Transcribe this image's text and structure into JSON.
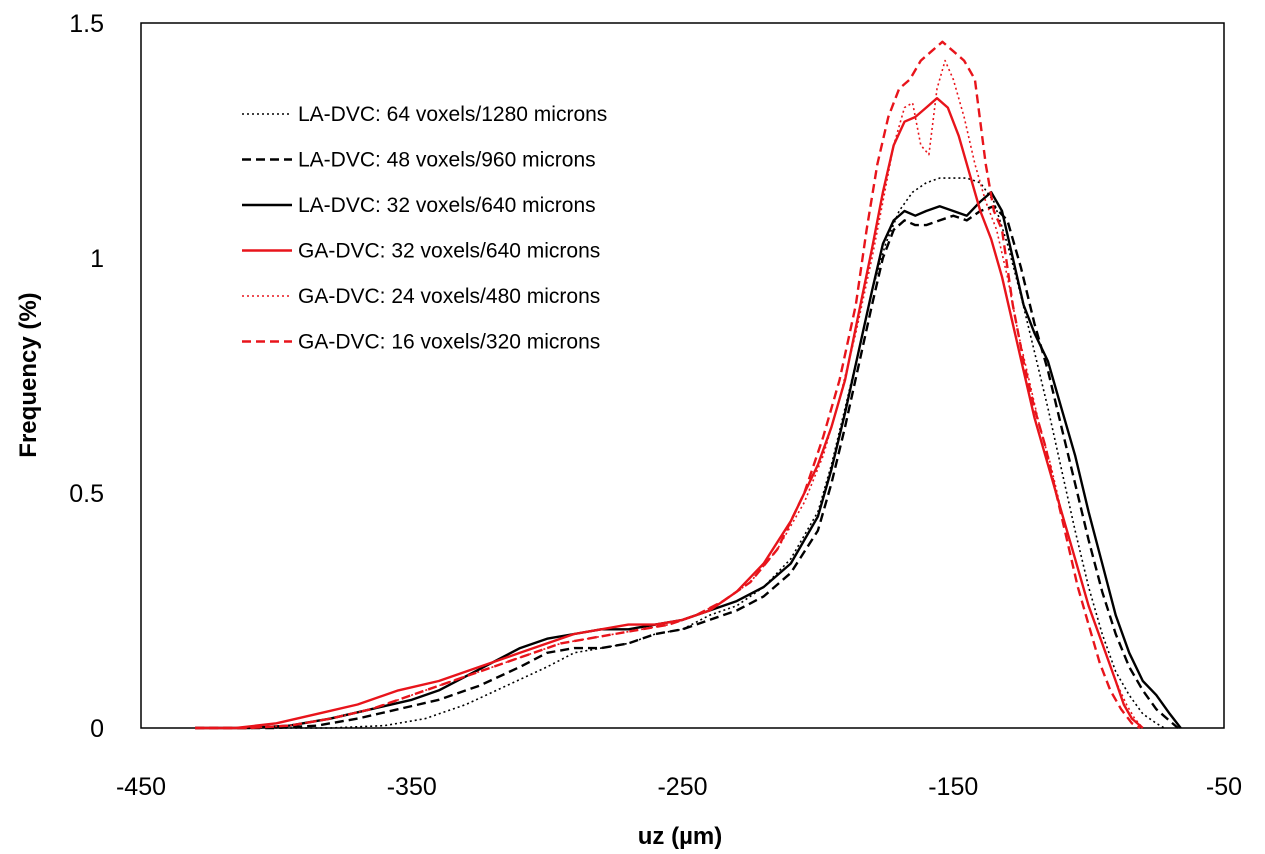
{
  "chart_data": {
    "type": "line",
    "xlabel": "uz (µm)",
    "ylabel": "Frequency (%)",
    "xlim": [
      -450,
      -50
    ],
    "ylim": [
      0,
      1.5
    ],
    "xticks": [
      "-450",
      "-350",
      "-250",
      "-150",
      "-50"
    ],
    "yticks": [
      "0",
      "0.5",
      "1",
      "1.5"
    ],
    "grid": false,
    "legend_position": "top-left",
    "series": [
      {
        "name": "LA-DVC: 64 voxels/1280 microns",
        "color": "#000000",
        "style": "dotted",
        "points": [
          [
            -430,
            0
          ],
          [
            -400,
            0
          ],
          [
            -380,
            0
          ],
          [
            -360,
            0.005
          ],
          [
            -345,
            0.02
          ],
          [
            -330,
            0.05
          ],
          [
            -315,
            0.09
          ],
          [
            -300,
            0.13
          ],
          [
            -290,
            0.16
          ],
          [
            -280,
            0.17
          ],
          [
            -270,
            0.18
          ],
          [
            -260,
            0.2
          ],
          [
            -250,
            0.21
          ],
          [
            -240,
            0.24
          ],
          [
            -230,
            0.26
          ],
          [
            -220,
            0.3
          ],
          [
            -210,
            0.36
          ],
          [
            -200,
            0.46
          ],
          [
            -195,
            0.56
          ],
          [
            -190,
            0.68
          ],
          [
            -185,
            0.8
          ],
          [
            -180,
            0.93
          ],
          [
            -175,
            1.03
          ],
          [
            -170,
            1.1
          ],
          [
            -165,
            1.14
          ],
          [
            -160,
            1.16
          ],
          [
            -155,
            1.17
          ],
          [
            -150,
            1.17
          ],
          [
            -145,
            1.17
          ],
          [
            -140,
            1.16
          ],
          [
            -135,
            1.12
          ],
          [
            -130,
            1.03
          ],
          [
            -125,
            0.92
          ],
          [
            -120,
            0.8
          ],
          [
            -115,
            0.68
          ],
          [
            -110,
            0.55
          ],
          [
            -105,
            0.42
          ],
          [
            -100,
            0.3
          ],
          [
            -95,
            0.2
          ],
          [
            -90,
            0.12
          ],
          [
            -85,
            0.07
          ],
          [
            -80,
            0.03
          ],
          [
            -75,
            0.01
          ],
          [
            -72,
            0
          ]
        ]
      },
      {
        "name": "LA-DVC: 48 voxels/960 microns",
        "color": "#000000",
        "style": "dashed",
        "points": [
          [
            -430,
            0
          ],
          [
            -400,
            0
          ],
          [
            -385,
            0.005
          ],
          [
            -370,
            0.02
          ],
          [
            -355,
            0.04
          ],
          [
            -340,
            0.06
          ],
          [
            -325,
            0.09
          ],
          [
            -310,
            0.13
          ],
          [
            -300,
            0.16
          ],
          [
            -290,
            0.17
          ],
          [
            -280,
            0.17
          ],
          [
            -270,
            0.18
          ],
          [
            -260,
            0.2
          ],
          [
            -250,
            0.21
          ],
          [
            -240,
            0.23
          ],
          [
            -230,
            0.25
          ],
          [
            -220,
            0.28
          ],
          [
            -210,
            0.33
          ],
          [
            -200,
            0.42
          ],
          [
            -195,
            0.52
          ],
          [
            -190,
            0.64
          ],
          [
            -185,
            0.77
          ],
          [
            -180,
            0.9
          ],
          [
            -176,
            1.0
          ],
          [
            -172,
            1.06
          ],
          [
            -168,
            1.08
          ],
          [
            -164,
            1.07
          ],
          [
            -160,
            1.07
          ],
          [
            -155,
            1.08
          ],
          [
            -150,
            1.09
          ],
          [
            -145,
            1.08
          ],
          [
            -140,
            1.1
          ],
          [
            -135,
            1.11
          ],
          [
            -130,
            1.08
          ],
          [
            -125,
            0.98
          ],
          [
            -120,
            0.86
          ],
          [
            -115,
            0.76
          ],
          [
            -110,
            0.64
          ],
          [
            -105,
            0.52
          ],
          [
            -100,
            0.4
          ],
          [
            -95,
            0.29
          ],
          [
            -90,
            0.2
          ],
          [
            -85,
            0.13
          ],
          [
            -80,
            0.08
          ],
          [
            -75,
            0.04
          ],
          [
            -70,
            0.015
          ],
          [
            -67,
            0
          ]
        ]
      },
      {
        "name": "LA-DVC: 32 voxels/640 microns",
        "color": "#000000",
        "style": "solid",
        "points": [
          [
            -430,
            0
          ],
          [
            -410,
            0
          ],
          [
            -395,
            0.005
          ],
          [
            -380,
            0.02
          ],
          [
            -365,
            0.04
          ],
          [
            -350,
            0.06
          ],
          [
            -340,
            0.08
          ],
          [
            -330,
            0.11
          ],
          [
            -320,
            0.14
          ],
          [
            -310,
            0.17
          ],
          [
            -300,
            0.19
          ],
          [
            -290,
            0.2
          ],
          [
            -280,
            0.21
          ],
          [
            -270,
            0.21
          ],
          [
            -260,
            0.22
          ],
          [
            -250,
            0.23
          ],
          [
            -240,
            0.25
          ],
          [
            -230,
            0.27
          ],
          [
            -220,
            0.3
          ],
          [
            -210,
            0.35
          ],
          [
            -200,
            0.45
          ],
          [
            -195,
            0.55
          ],
          [
            -190,
            0.67
          ],
          [
            -185,
            0.8
          ],
          [
            -180,
            0.93
          ],
          [
            -176,
            1.03
          ],
          [
            -172,
            1.08
          ],
          [
            -168,
            1.1
          ],
          [
            -164,
            1.09
          ],
          [
            -160,
            1.1
          ],
          [
            -155,
            1.11
          ],
          [
            -150,
            1.1
          ],
          [
            -145,
            1.09
          ],
          [
            -140,
            1.12
          ],
          [
            -136,
            1.14
          ],
          [
            -132,
            1.1
          ],
          [
            -128,
            1.0
          ],
          [
            -124,
            0.9
          ],
          [
            -120,
            0.84
          ],
          [
            -115,
            0.78
          ],
          [
            -110,
            0.68
          ],
          [
            -105,
            0.58
          ],
          [
            -100,
            0.46
          ],
          [
            -95,
            0.35
          ],
          [
            -90,
            0.24
          ],
          [
            -85,
            0.16
          ],
          [
            -80,
            0.1
          ],
          [
            -75,
            0.07
          ],
          [
            -70,
            0.03
          ],
          [
            -66,
            0
          ]
        ]
      },
      {
        "name": "GA-DVC: 32 voxels/640 microns",
        "color": "#e8141b",
        "style": "solid",
        "points": [
          [
            -430,
            0
          ],
          [
            -415,
            0
          ],
          [
            -400,
            0.01
          ],
          [
            -385,
            0.03
          ],
          [
            -370,
            0.05
          ],
          [
            -355,
            0.08
          ],
          [
            -340,
            0.1
          ],
          [
            -325,
            0.13
          ],
          [
            -310,
            0.16
          ],
          [
            -300,
            0.18
          ],
          [
            -290,
            0.2
          ],
          [
            -280,
            0.21
          ],
          [
            -270,
            0.22
          ],
          [
            -260,
            0.22
          ],
          [
            -250,
            0.23
          ],
          [
            -240,
            0.25
          ],
          [
            -230,
            0.29
          ],
          [
            -220,
            0.35
          ],
          [
            -210,
            0.44
          ],
          [
            -200,
            0.56
          ],
          [
            -195,
            0.64
          ],
          [
            -190,
            0.74
          ],
          [
            -185,
            0.88
          ],
          [
            -180,
            1.02
          ],
          [
            -176,
            1.14
          ],
          [
            -172,
            1.24
          ],
          [
            -168,
            1.29
          ],
          [
            -164,
            1.3
          ],
          [
            -160,
            1.32
          ],
          [
            -156,
            1.34
          ],
          [
            -152,
            1.32
          ],
          [
            -148,
            1.26
          ],
          [
            -144,
            1.18
          ],
          [
            -140,
            1.1
          ],
          [
            -136,
            1.04
          ],
          [
            -132,
            0.96
          ],
          [
            -128,
            0.86
          ],
          [
            -124,
            0.76
          ],
          [
            -120,
            0.66
          ],
          [
            -115,
            0.56
          ],
          [
            -110,
            0.46
          ],
          [
            -105,
            0.36
          ],
          [
            -100,
            0.26
          ],
          [
            -95,
            0.18
          ],
          [
            -90,
            0.1
          ],
          [
            -87,
            0.05
          ],
          [
            -84,
            0.02
          ],
          [
            -80,
            0
          ]
        ]
      },
      {
        "name": "GA-DVC: 24 voxels/480 microns",
        "color": "#e8141b",
        "style": "dotted",
        "points": [
          [
            -430,
            0
          ],
          [
            -410,
            0
          ],
          [
            -395,
            0.005
          ],
          [
            -380,
            0.02
          ],
          [
            -365,
            0.04
          ],
          [
            -350,
            0.07
          ],
          [
            -335,
            0.1
          ],
          [
            -320,
            0.13
          ],
          [
            -305,
            0.16
          ],
          [
            -295,
            0.18
          ],
          [
            -285,
            0.19
          ],
          [
            -275,
            0.2
          ],
          [
            -265,
            0.21
          ],
          [
            -255,
            0.22
          ],
          [
            -245,
            0.24
          ],
          [
            -235,
            0.27
          ],
          [
            -225,
            0.31
          ],
          [
            -215,
            0.38
          ],
          [
            -205,
            0.48
          ],
          [
            -198,
            0.58
          ],
          [
            -192,
            0.7
          ],
          [
            -186,
            0.84
          ],
          [
            -180,
            1.0
          ],
          [
            -176,
            1.12
          ],
          [
            -172,
            1.24
          ],
          [
            -168,
            1.32
          ],
          [
            -165,
            1.33
          ],
          [
            -162,
            1.24
          ],
          [
            -159,
            1.22
          ],
          [
            -156,
            1.36
          ],
          [
            -153,
            1.42
          ],
          [
            -150,
            1.38
          ],
          [
            -146,
            1.3
          ],
          [
            -142,
            1.2
          ],
          [
            -138,
            1.12
          ],
          [
            -134,
            1.06
          ],
          [
            -130,
            0.96
          ],
          [
            -126,
            0.84
          ],
          [
            -122,
            0.74
          ],
          [
            -118,
            0.64
          ],
          [
            -114,
            0.56
          ],
          [
            -110,
            0.46
          ],
          [
            -105,
            0.36
          ],
          [
            -100,
            0.26
          ],
          [
            -95,
            0.18
          ],
          [
            -90,
            0.1
          ],
          [
            -86,
            0.05
          ],
          [
            -83,
            0.02
          ],
          [
            -80,
            0
          ]
        ]
      },
      {
        "name": "GA-DVC: 16 voxels/320 microns",
        "color": "#e8141b",
        "style": "dashed",
        "points": [
          [
            -430,
            0
          ],
          [
            -410,
            0
          ],
          [
            -395,
            0.005
          ],
          [
            -380,
            0.02
          ],
          [
            -365,
            0.04
          ],
          [
            -350,
            0.07
          ],
          [
            -335,
            0.1
          ],
          [
            -320,
            0.13
          ],
          [
            -305,
            0.16
          ],
          [
            -295,
            0.18
          ],
          [
            -285,
            0.19
          ],
          [
            -275,
            0.2
          ],
          [
            -265,
            0.21
          ],
          [
            -255,
            0.22
          ],
          [
            -245,
            0.24
          ],
          [
            -235,
            0.27
          ],
          [
            -225,
            0.31
          ],
          [
            -215,
            0.38
          ],
          [
            -205,
            0.5
          ],
          [
            -198,
            0.62
          ],
          [
            -192,
            0.74
          ],
          [
            -186,
            0.9
          ],
          [
            -182,
            1.06
          ],
          [
            -178,
            1.2
          ],
          [
            -174,
            1.3
          ],
          [
            -170,
            1.36
          ],
          [
            -166,
            1.38
          ],
          [
            -162,
            1.42
          ],
          [
            -158,
            1.44
          ],
          [
            -154,
            1.46
          ],
          [
            -150,
            1.44
          ],
          [
            -146,
            1.42
          ],
          [
            -142,
            1.38
          ],
          [
            -138,
            1.2
          ],
          [
            -135,
            1.1
          ],
          [
            -132,
            1.06
          ],
          [
            -128,
            0.9
          ],
          [
            -124,
            0.78
          ],
          [
            -120,
            0.68
          ],
          [
            -116,
            0.6
          ],
          [
            -112,
            0.5
          ],
          [
            -108,
            0.4
          ],
          [
            -104,
            0.3
          ],
          [
            -100,
            0.22
          ],
          [
            -96,
            0.14
          ],
          [
            -92,
            0.08
          ],
          [
            -88,
            0.04
          ],
          [
            -84,
            0.01
          ],
          [
            -81,
            0
          ]
        ]
      }
    ]
  }
}
